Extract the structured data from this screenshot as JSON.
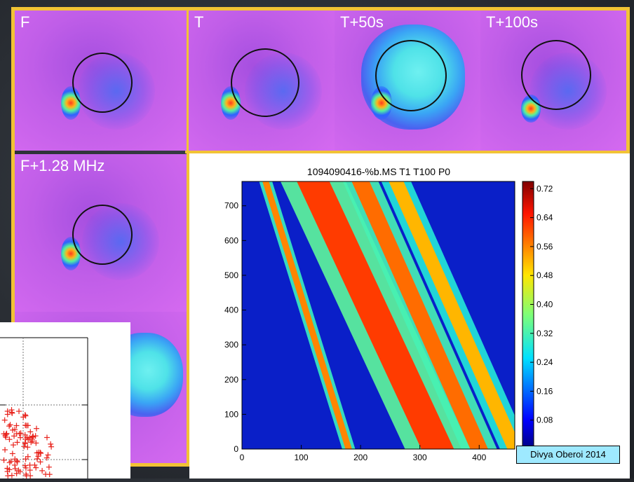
{
  "panels": {
    "f": "F",
    "t": "T",
    "t50": "T+50s",
    "t100": "T+100s",
    "f128": "F+1.28 MHz"
  },
  "credit": "Divya Oberoi 2014",
  "colors": {
    "frame": "#f2c335",
    "panel_bg": "#c05ee8",
    "ring": "#111111"
  },
  "chart_data": {
    "type": "heatmap",
    "title": "1094090416-%b.MS T1 T100 P0",
    "xlabel": "",
    "ylabel": "",
    "xlim": [
      0,
      460
    ],
    "ylim": [
      0,
      770
    ],
    "x_ticks": [
      "0",
      "100",
      "200",
      "300",
      "400"
    ],
    "y_ticks": [
      "0",
      "100",
      "200",
      "300",
      "400",
      "500",
      "600",
      "700"
    ],
    "colorbar": {
      "min": 0.0,
      "max": 0.74,
      "ticks": [
        "0.08",
        "0.16",
        "0.24",
        "0.32",
        "0.40",
        "0.48",
        "0.56",
        "0.64",
        "0.72"
      ]
    },
    "features": [
      {
        "name": "",
        "x_at_top": 40,
        "x_at_bottom": 180,
        "width": 22,
        "intensity": 0.56
      },
      {
        "name": "",
        "x_at_top": 120,
        "x_at_bottom": 330,
        "width": 110,
        "intensity": 0.62
      },
      {
        "name": "",
        "x_at_top": 200,
        "x_at_bottom": 400,
        "width": 60,
        "intensity": 0.58
      },
      {
        "name": "",
        "x_at_top": 260,
        "x_at_bottom": 460,
        "width": 50,
        "intensity": 0.52
      }
    ]
  }
}
